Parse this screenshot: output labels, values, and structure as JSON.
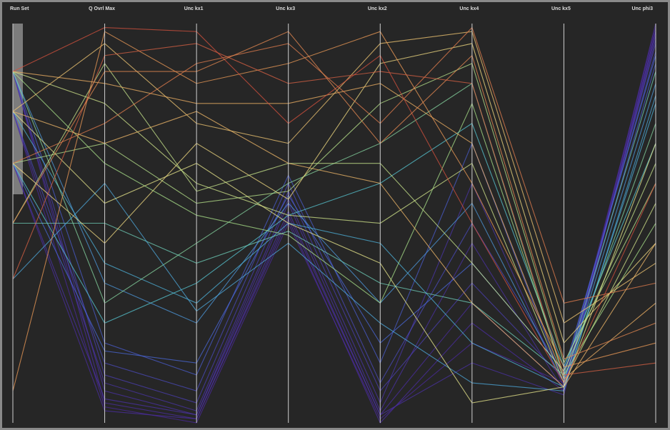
{
  "chart_data": {
    "type": "parallel",
    "axes": [
      "Run Set",
      "Q Ovrl Max",
      "Unc kx1",
      "Unc kx3",
      "Unc kx2",
      "Unc kx4",
      "Unc kx5",
      "Unc phi3"
    ],
    "ylim": [
      0,
      1
    ],
    "color_axis": 2,
    "colors": [
      "#4b2a9e",
      "#4a6fe0",
      "#4fc3d9",
      "#9fe08a",
      "#f2e98c",
      "#f0a45a",
      "#d0463a"
    ],
    "records": [
      [
        0.88,
        0.05,
        0.01,
        0.52,
        0.02,
        0.3,
        0.09,
        0.98
      ],
      [
        0.88,
        0.08,
        0.02,
        0.55,
        0.03,
        0.45,
        0.08,
        0.97
      ],
      [
        0.78,
        0.04,
        0.0,
        0.5,
        0.01,
        0.2,
        0.1,
        0.99
      ],
      [
        0.78,
        0.1,
        0.03,
        0.56,
        0.05,
        0.6,
        0.09,
        0.96
      ],
      [
        0.65,
        0.06,
        0.02,
        0.53,
        0.02,
        0.15,
        0.07,
        0.98
      ],
      [
        0.88,
        0.12,
        0.05,
        0.58,
        0.08,
        0.35,
        0.11,
        0.95
      ],
      [
        0.65,
        0.03,
        0.01,
        0.51,
        0.0,
        0.25,
        0.08,
        1.0
      ],
      [
        0.78,
        0.15,
        0.08,
        0.6,
        0.1,
        0.5,
        0.12,
        0.93
      ],
      [
        0.88,
        0.2,
        0.12,
        0.62,
        0.15,
        0.7,
        0.1,
        0.9
      ],
      [
        0.65,
        0.18,
        0.15,
        0.57,
        0.2,
        0.4,
        0.13,
        0.92
      ],
      [
        0.88,
        0.35,
        0.25,
        0.55,
        0.3,
        0.55,
        0.1,
        0.85
      ],
      [
        0.78,
        0.4,
        0.3,
        0.5,
        0.45,
        0.2,
        0.09,
        0.8
      ],
      [
        0.65,
        0.25,
        0.35,
        0.52,
        0.6,
        0.75,
        0.14,
        0.7
      ],
      [
        0.5,
        0.5,
        0.4,
        0.48,
        0.35,
        0.3,
        0.12,
        0.88
      ],
      [
        0.88,
        0.3,
        0.45,
        0.6,
        0.7,
        0.85,
        0.11,
        0.75
      ],
      [
        0.36,
        0.6,
        0.28,
        0.45,
        0.25,
        0.1,
        0.08,
        0.82
      ],
      [
        0.65,
        0.7,
        0.55,
        0.58,
        0.8,
        0.9,
        0.15,
        0.6
      ],
      [
        0.88,
        0.8,
        0.6,
        0.52,
        0.5,
        0.65,
        0.1,
        0.55
      ],
      [
        0.78,
        0.55,
        0.65,
        0.5,
        0.4,
        0.05,
        0.09,
        0.7
      ],
      [
        0.65,
        0.45,
        0.7,
        0.56,
        0.9,
        0.95,
        0.2,
        0.45
      ],
      [
        0.5,
        0.9,
        0.58,
        0.65,
        0.65,
        0.4,
        0.13,
        0.65
      ],
      [
        0.88,
        0.65,
        0.52,
        0.47,
        0.3,
        0.8,
        0.12,
        0.5
      ],
      [
        0.78,
        0.95,
        0.75,
        0.7,
        0.95,
        0.98,
        0.25,
        0.4
      ],
      [
        0.88,
        0.85,
        0.8,
        0.8,
        0.85,
        0.7,
        0.11,
        0.3
      ],
      [
        0.08,
        0.98,
        0.85,
        0.9,
        0.98,
        0.6,
        0.14,
        0.2
      ],
      [
        0.65,
        0.75,
        0.9,
        0.95,
        0.75,
        0.99,
        0.3,
        0.35
      ],
      [
        0.36,
        0.92,
        0.95,
        0.85,
        0.88,
        0.85,
        0.12,
        0.15
      ],
      [
        0.88,
        0.99,
        0.98,
        0.75,
        0.92,
        0.5,
        0.1,
        0.6
      ],
      [
        0.5,
        0.88,
        0.88,
        0.98,
        0.7,
        0.92,
        0.16,
        0.25
      ],
      [
        0.78,
        0.7,
        0.78,
        0.65,
        0.6,
        0.3,
        0.09,
        0.45
      ]
    ]
  }
}
